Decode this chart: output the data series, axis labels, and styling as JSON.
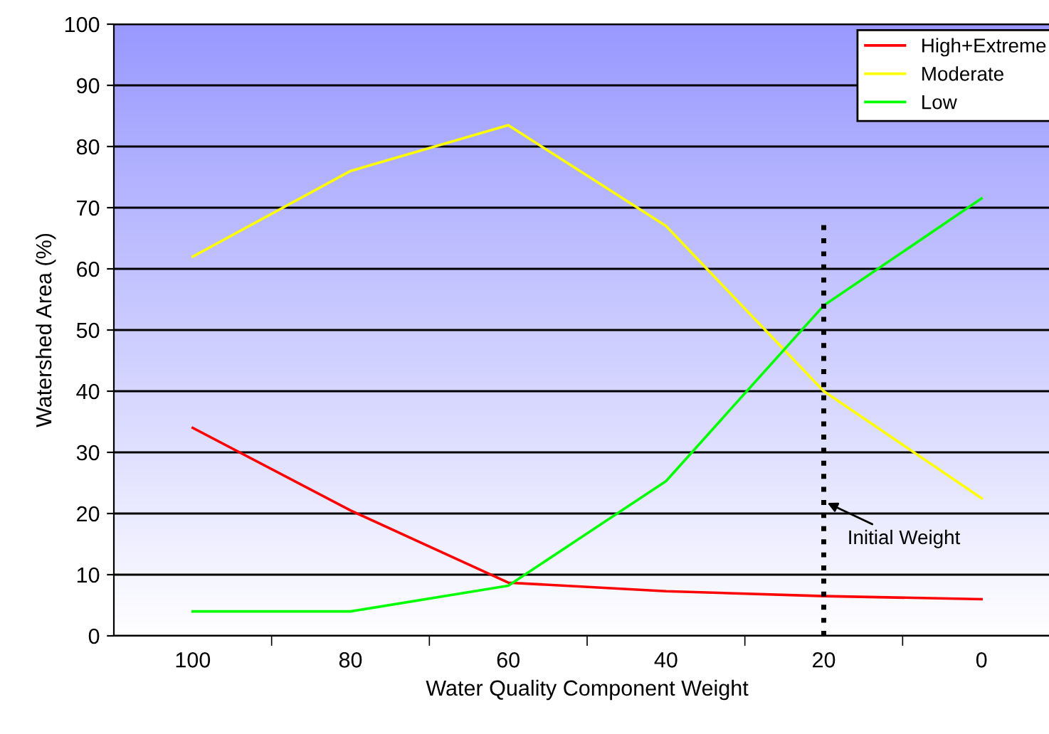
{
  "chart_data": {
    "type": "line",
    "xlabel": "Water Quality Component Weight",
    "ylabel": "Watershed Area (%)",
    "categories": [
      "100",
      "80",
      "60",
      "40",
      "20",
      "0"
    ],
    "series": [
      {
        "name": "High+Extreme",
        "color": "#ff0000",
        "values": [
          34,
          20.5,
          8.7,
          7.3,
          6.5,
          6
        ]
      },
      {
        "name": "Moderate",
        "color": "#ffff00",
        "values": [
          62,
          76,
          83.5,
          67,
          40,
          22.5
        ]
      },
      {
        "name": "Low",
        "color": "#00ff00",
        "values": [
          4,
          4,
          8.2,
          25.3,
          54,
          71.5
        ]
      },
      {
        "color": "#000000",
        "x": [
          "20",
          "20"
        ],
        "values": [
          0,
          68
        ],
        "line_style": "dotted"
      }
    ],
    "annotations": [
      {
        "text": "Initial Weight",
        "x": "20",
        "y": 22
      }
    ],
    "ylim": [
      0,
      100
    ],
    "yticks": [
      0,
      10,
      20,
      30,
      40,
      50,
      60,
      70,
      80,
      90,
      100
    ],
    "grid": "y",
    "legend": "top right",
    "marker": "none",
    "line_style": "solid"
  }
}
